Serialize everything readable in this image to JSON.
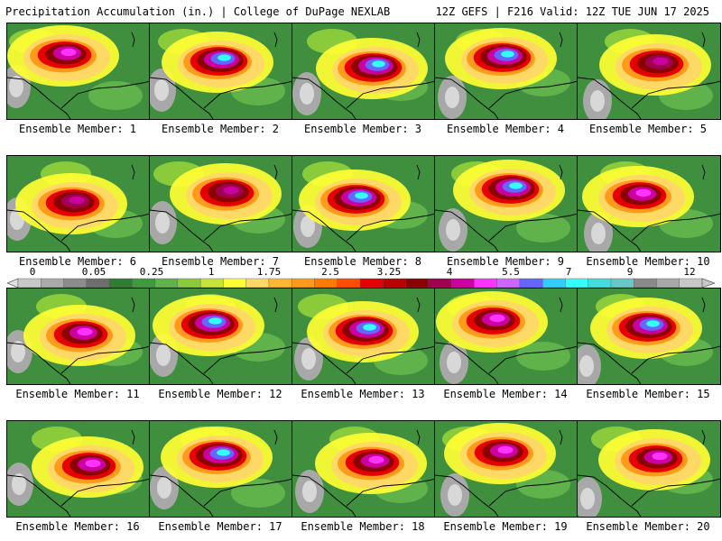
{
  "header": {
    "left_title": "Precipitation Accumulation (in.) | College of DuPage NEXLAB",
    "right_title": "12Z GEFS | F216 Valid: 12Z TUE JUN 17 2025"
  },
  "members": [
    {
      "label": "Ensemble Member: 1",
      "max": "pink"
    },
    {
      "label": "Ensemble Member: 2",
      "max": "cyan"
    },
    {
      "label": "Ensemble Member: 3",
      "max": "cyan"
    },
    {
      "label": "Ensemble Member: 4",
      "max": "cyan"
    },
    {
      "label": "Ensemble Member: 5",
      "max": "purple"
    },
    {
      "label": "Ensemble Member: 6",
      "max": "purple"
    },
    {
      "label": "Ensemble Member: 7",
      "max": "purple"
    },
    {
      "label": "Ensemble Member: 8",
      "max": "cyan"
    },
    {
      "label": "Ensemble Member: 9",
      "max": "cyan"
    },
    {
      "label": "Ensemble Member: 10",
      "max": "pink"
    },
    {
      "label": "Ensemble Member: 11",
      "max": "pink"
    },
    {
      "label": "Ensemble Member: 12",
      "max": "cyan"
    },
    {
      "label": "Ensemble Member: 13",
      "max": "cyan"
    },
    {
      "label": "Ensemble Member: 14",
      "max": "pink"
    },
    {
      "label": "Ensemble Member: 15",
      "max": "cyan"
    },
    {
      "label": "Ensemble Member: 16",
      "max": "pink"
    },
    {
      "label": "Ensemble Member: 17",
      "max": "cyan"
    },
    {
      "label": "Ensemble Member: 18",
      "max": "pink"
    },
    {
      "label": "Ensemble Member: 19",
      "max": "pink"
    },
    {
      "label": "Ensemble Member: 20",
      "max": "pink"
    }
  ],
  "colorbar": {
    "tick_labels": [
      "0",
      "0.05",
      "0.25",
      "1",
      "1.75",
      "2.5",
      "3.25",
      "4",
      "5.5",
      "7",
      "9",
      "12"
    ],
    "colors": [
      "#c8c8c8",
      "#aaaaaa",
      "#8c8c8c",
      "#6e6e6e",
      "#2e7d32",
      "#3f9a3f",
      "#5fb34a",
      "#8acb3c",
      "#c6e33a",
      "#ffff33",
      "#ffd966",
      "#ffb733",
      "#ff9a1a",
      "#ff7a00",
      "#ff4d00",
      "#e60000",
      "#b80000",
      "#8b0000",
      "#a0004f",
      "#cc00a0",
      "#ff33ff",
      "#cc66ff",
      "#6666ff",
      "#33ccff",
      "#33ffff",
      "#44dddd",
      "#66c8c8",
      "#8a8a8a",
      "#a8a8a8",
      "#c8c8c8"
    ]
  }
}
